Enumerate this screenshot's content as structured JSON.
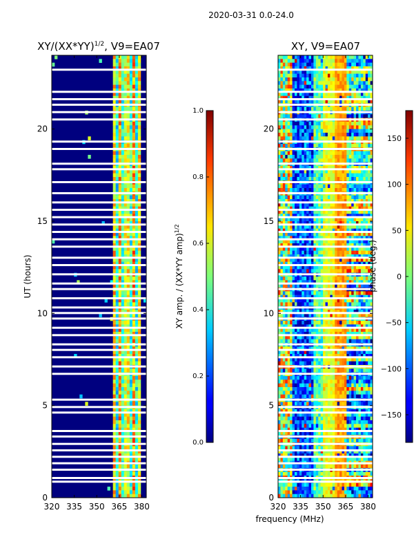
{
  "figure_title": "2020-03-31 0.0-24.0",
  "shared_xlabel": "frequency (MHz)",
  "colors": {
    "amp_base": "#00007f",
    "phase_base": "#ff7f00",
    "flag": "#ffffff"
  },
  "chart_data": [
    {
      "type": "heatmap",
      "title_main": "XY/(XX*YY)",
      "title_sup": "1/2",
      "title_tail": ", V9=EA07",
      "ylabel": "UT (hours)",
      "xlim": [
        320,
        383
      ],
      "ylim": [
        0,
        24
      ],
      "xticks": [
        320,
        335,
        350,
        365,
        380
      ],
      "yticks": [
        0,
        5,
        10,
        15,
        20
      ],
      "bright_band_mhz": [
        360,
        380
      ],
      "colorbar": {
        "label_main": "XY amp. / (XX*YY amp)",
        "label_sup": "1/2",
        "range": [
          0.0,
          1.0
        ],
        "ticks": [
          "0.0",
          "0.2",
          "0.4",
          "0.6",
          "0.8",
          "1.0"
        ]
      }
    },
    {
      "type": "heatmap",
      "title": "XY, V9=EA07",
      "xlim": [
        320,
        383
      ],
      "ylim": [
        0,
        24
      ],
      "xticks": [
        320,
        335,
        350,
        365,
        380
      ],
      "yticks": [
        0,
        5,
        10,
        15,
        20
      ],
      "colorbar": {
        "label": "phase (deg.)",
        "range": [
          -180,
          180
        ],
        "ticks": [
          "150",
          "100",
          "50",
          "0",
          "−50",
          "−100",
          "−150"
        ],
        "tick_values": [
          150,
          100,
          50,
          0,
          -50,
          -100,
          -150
        ]
      }
    }
  ],
  "flagged_hours": [
    0.85,
    1.05,
    1.5,
    1.85,
    2.2,
    2.55,
    2.9,
    3.3,
    3.6,
    4.6,
    4.9,
    5.3,
    6.7,
    7.1,
    7.6,
    8.0,
    8.3,
    8.8,
    9.2,
    9.7,
    10.0,
    10.3,
    10.8,
    11.3,
    11.6,
    12.1,
    12.6,
    13.0,
    13.6,
    14.0,
    14.4,
    14.8,
    15.2,
    15.6,
    16.0,
    16.5,
    17.1,
    17.8,
    18.1,
    18.9,
    19.3,
    20.5,
    20.9,
    21.3,
    21.6,
    22.0,
    23.2
  ]
}
